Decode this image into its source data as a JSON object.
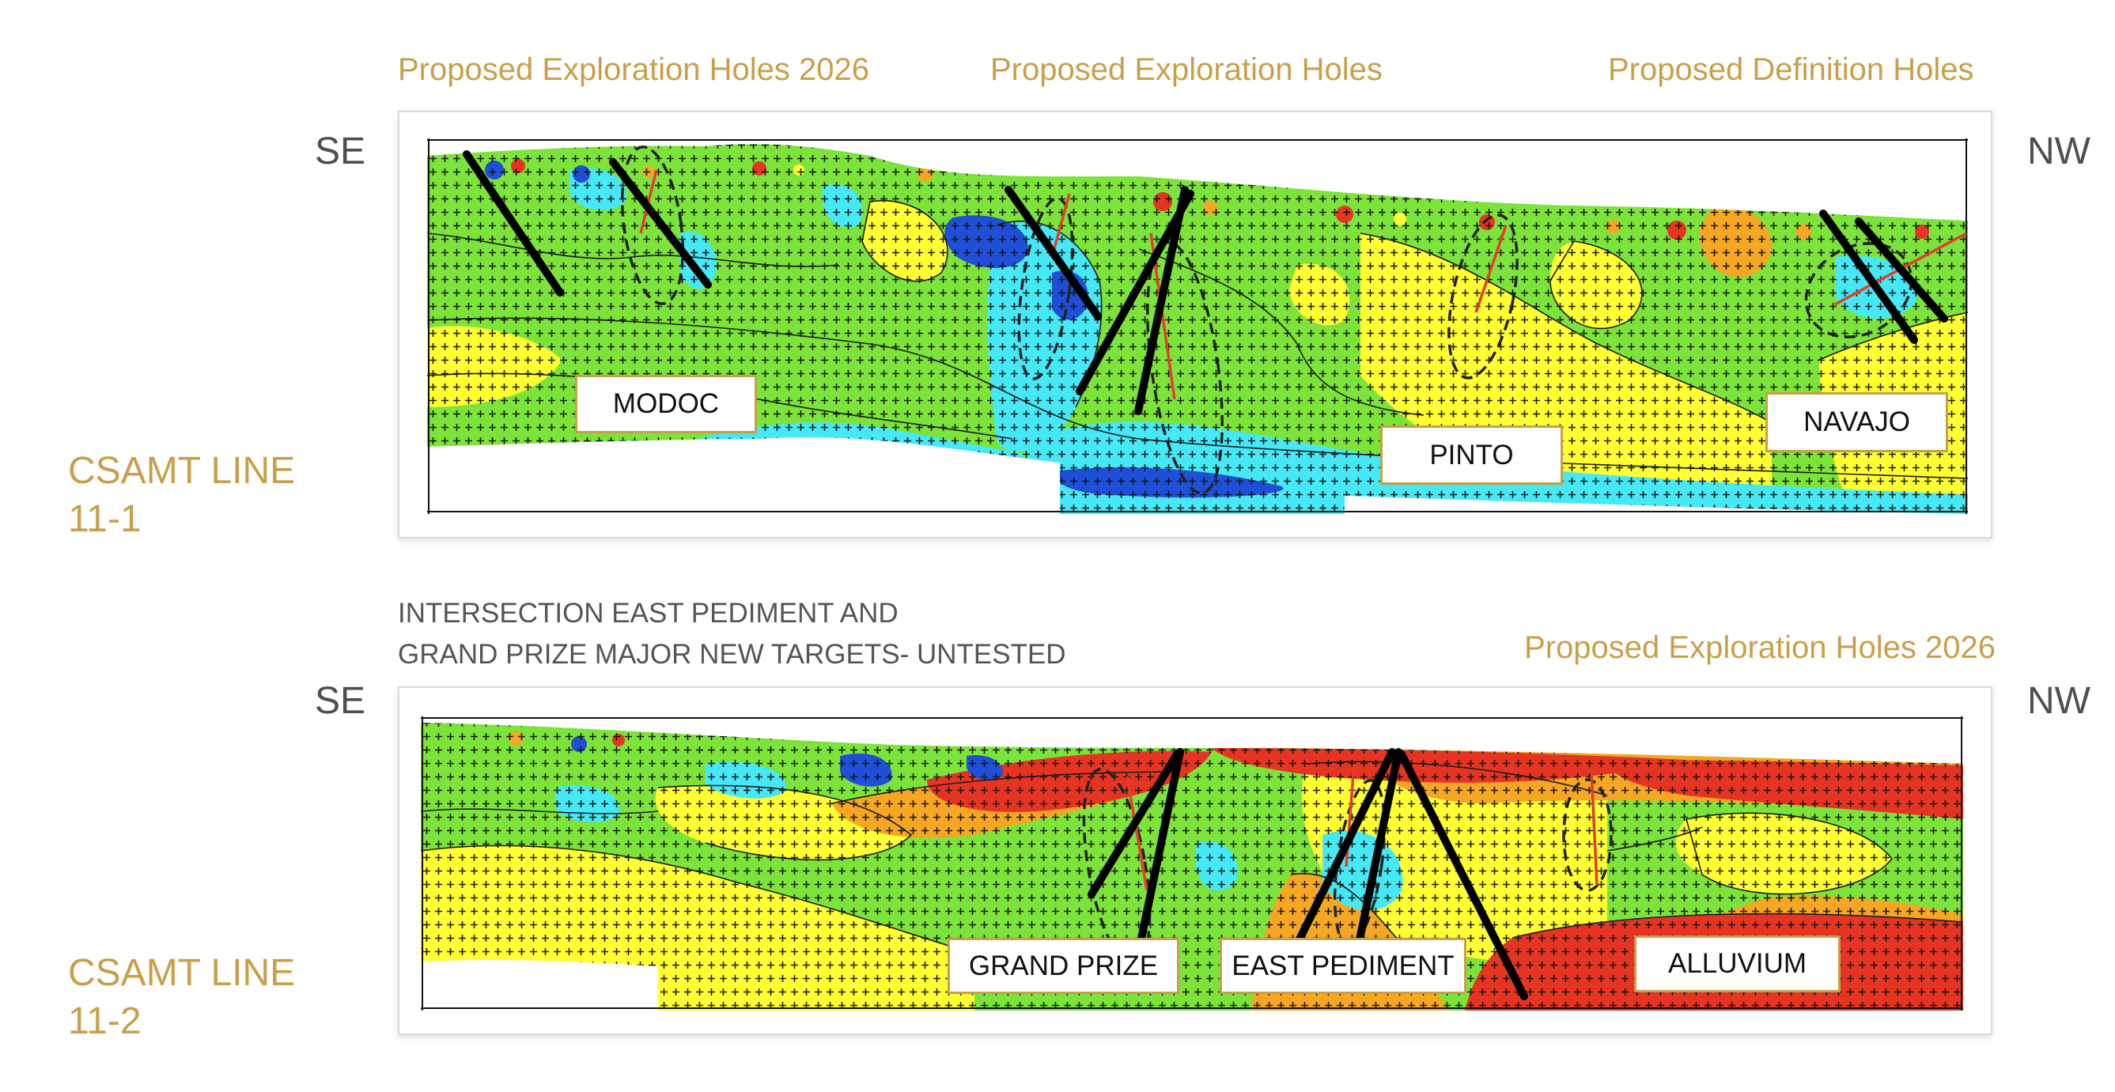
{
  "top": {
    "labels": [
      "Proposed Exploration Holes 2026",
      "Proposed Exploration Holes",
      "Proposed Definition Holes"
    ],
    "left_dir": "SE",
    "right_dir": "NW",
    "line_label": [
      "CSAMT LINE",
      "11-1"
    ],
    "targets": [
      "MODOC",
      "PINTO",
      "NAVAJO"
    ]
  },
  "bottom": {
    "caption_lines": [
      "INTERSECTION EAST PEDIMENT AND",
      "GRAND PRIZE MAJOR NEW TARGETS- UNTESTED"
    ],
    "label": "Proposed Exploration Holes 2026",
    "left_dir": "SE",
    "right_dir": "NW",
    "line_label": [
      "CSAMT LINE",
      "11-2"
    ],
    "targets": [
      "GRAND PRIZE",
      "EAST PEDIMENT",
      "ALLUVIUM"
    ]
  },
  "colors": {
    "gold": "#c9a04a",
    "resistivity_scale": [
      "#1f4fd6",
      "#46e8f5",
      "#7ce33a",
      "#ffff33",
      "#f5a623",
      "#e53522"
    ]
  }
}
